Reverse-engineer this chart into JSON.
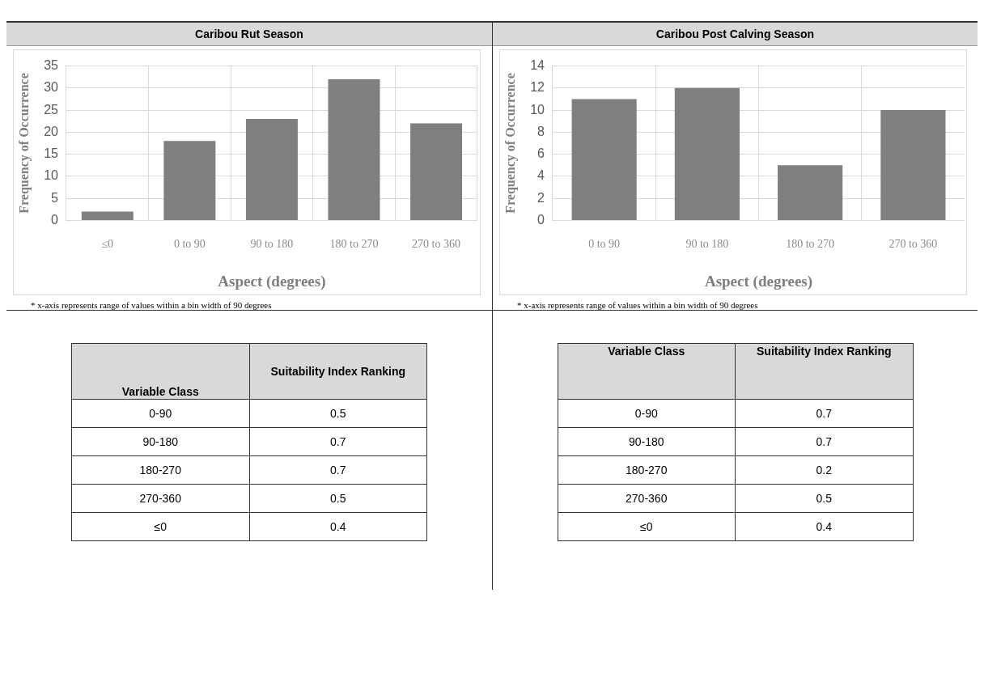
{
  "chart_data": [
    {
      "type": "bar",
      "title": "Caribou Rut Season",
      "xlabel": "Aspect (degrees)",
      "ylabel": "Frequency of Occurrence",
      "categories": [
        "≤0",
        "0 to 90",
        "90 to 180",
        "180 to 270",
        "270 to 360"
      ],
      "values": [
        2,
        18,
        23,
        32,
        22
      ],
      "color": "#7f7f7f",
      "ylim": [
        0,
        35
      ],
      "yticks": [
        0,
        5,
        10,
        15,
        20,
        25,
        30,
        35
      ],
      "grid": true,
      "annotations": [
        "* x-axis represents range of values within a bin width of 90 degrees"
      ]
    },
    {
      "type": "bar",
      "title": "Caribou Post Calving Season",
      "xlabel": "Aspect (degrees)",
      "ylabel": "Frequency of Occurrence",
      "categories": [
        "0 to 90",
        "90 to 180",
        "180 to 270",
        "270 to 360"
      ],
      "values": [
        11,
        12,
        5,
        10
      ],
      "color": "#7f7f7f",
      "ylim": [
        0,
        14
      ],
      "yticks": [
        0,
        2,
        4,
        6,
        8,
        10,
        12,
        14
      ],
      "grid": true,
      "annotations": [
        "* x-axis represents range of values within a bin width of 90 degrees"
      ]
    },
    {
      "type": "other",
      "xlabel": "Variable Class",
      "ylabel": "Suitability Index Ranking",
      "categories": [
        "0-90",
        "90-180",
        "180-270",
        "270-360",
        "≤0"
      ],
      "values": [
        0.5,
        0.7,
        0.7,
        0.5,
        0.4
      ],
      "data_labels": true
    },
    {
      "type": "other",
      "xlabel": "Variable Class",
      "ylabel": "Suitability Index Ranking",
      "categories": [
        "0-90",
        "90-180",
        "180-270",
        "270-360",
        "≤0"
      ],
      "values": [
        0.7,
        0.7,
        0.2,
        0.5,
        0.4
      ],
      "data_labels": true
    }
  ]
}
